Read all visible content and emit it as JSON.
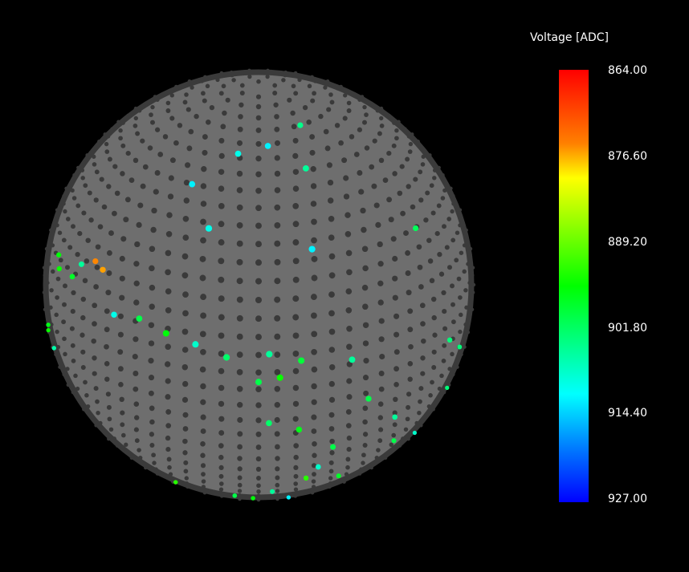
{
  "chart_data": {
    "type": "scatter",
    "title": "",
    "colorbar": {
      "label": "Voltage [ADC]",
      "ticks": [
        "864.00",
        "876.60",
        "889.20",
        "901.80",
        "914.40",
        "927.00"
      ],
      "range": [
        864.0,
        927.0
      ],
      "colormap": "rainbow (red = low, blue = high)"
    },
    "sphere": {
      "inactive_color": "#3a3a3a",
      "sphere_color": "#6e6e6e",
      "background": "#000000"
    },
    "active_channels_description_note": "",
    "hits": [
      {
        "theta": 1.2,
        "phi": -0.95,
        "v": 875
      },
      {
        "theta": 1.22,
        "phi": -0.88,
        "v": 876
      },
      {
        "theta": 1.25,
        "phi": -1.05,
        "v": 905
      },
      {
        "theta": 1.3,
        "phi": -1.3,
        "v": 896
      },
      {
        "theta": 1.35,
        "phi": -1.25,
        "v": 895
      },
      {
        "theta": 1.33,
        "phi": -1.1,
        "v": 898
      },
      {
        "theta": 1.4,
        "phi": -0.75,
        "v": 910
      },
      {
        "theta": 1.38,
        "phi": -0.6,
        "v": 900
      },
      {
        "theta": 1.42,
        "phi": -0.45,
        "v": 896
      },
      {
        "theta": 1.45,
        "phi": -0.3,
        "v": 908
      },
      {
        "theta": 1.5,
        "phi": -0.15,
        "v": 902
      },
      {
        "theta": 1.48,
        "phi": 0.05,
        "v": 905
      },
      {
        "theta": 1.52,
        "phi": 0.2,
        "v": 899
      },
      {
        "theta": 1.6,
        "phi": 0.1,
        "v": 895
      },
      {
        "theta": 1.62,
        "phi": 0.0,
        "v": 900
      },
      {
        "theta": 1.55,
        "phi": 0.45,
        "v": 905
      },
      {
        "theta": 1.7,
        "phi": -1.4,
        "v": 897
      },
      {
        "theta": 1.75,
        "phi": -1.45,
        "v": 895
      },
      {
        "theta": 1.8,
        "phi": -1.35,
        "v": 906
      },
      {
        "theta": 1.9,
        "phi": -1.48,
        "v": 900
      },
      {
        "theta": 2.0,
        "phi": -1.42,
        "v": 897
      },
      {
        "theta": 2.1,
        "phi": -1.38,
        "v": 905
      },
      {
        "theta": 2.2,
        "phi": -1.3,
        "v": 895
      },
      {
        "theta": 2.3,
        "phi": -1.2,
        "v": 893
      },
      {
        "theta": 2.4,
        "phi": -1.1,
        "v": 894
      },
      {
        "theta": 2.5,
        "phi": -0.95,
        "v": 900
      },
      {
        "theta": 2.6,
        "phi": -0.8,
        "v": 897
      },
      {
        "theta": 2.5,
        "phi": -0.7,
        "v": 893
      },
      {
        "theta": 2.55,
        "phi": -0.2,
        "v": 900
      },
      {
        "theta": 2.6,
        "phi": -0.05,
        "v": 896
      },
      {
        "theta": 2.45,
        "phi": 0.1,
        "v": 905
      },
      {
        "theta": 2.3,
        "phi": 0.3,
        "v": 893
      },
      {
        "theta": 2.2,
        "phi": 0.35,
        "v": 908
      },
      {
        "theta": 2.05,
        "phi": 0.4,
        "v": 900
      },
      {
        "theta": 1.9,
        "phi": 0.2,
        "v": 897
      },
      {
        "theta": 1.85,
        "phi": 0.05,
        "v": 902
      },
      {
        "theta": 1.78,
        "phi": 0.55,
        "v": 900
      },
      {
        "theta": 1.95,
        "phi": 0.75,
        "v": 905
      },
      {
        "theta": 2.15,
        "phi": 0.85,
        "v": 900
      },
      {
        "theta": 2.35,
        "phi": 0.55,
        "v": 898
      },
      {
        "theta": 1.65,
        "phi": 1.1,
        "v": 903
      },
      {
        "theta": 1.75,
        "phi": 1.25,
        "v": 903
      },
      {
        "theta": 2.0,
        "phi": 1.3,
        "v": 903
      },
      {
        "theta": 2.25,
        "phi": 1.2,
        "v": 908
      },
      {
        "theta": 0.5,
        "phi": -0.2,
        "v": 910
      },
      {
        "theta": 0.6,
        "phi": 0.4,
        "v": 905
      },
      {
        "theta": 0.45,
        "phi": 0.1,
        "v": 912
      },
      {
        "theta": 0.7,
        "phi": -0.5,
        "v": 912
      },
      {
        "theta": 0.35,
        "phi": 0.6,
        "v": 904
      },
      {
        "theta": 0.9,
        "phi": -0.3,
        "v": 910
      },
      {
        "theta": 1.0,
        "phi": 0.3,
        "v": 912
      },
      {
        "theta": 1.05,
        "phi": 1.0,
        "v": 901
      },
      {
        "theta": 2.7,
        "phi": -0.45,
        "v": 912
      },
      {
        "theta": 2.75,
        "phi": 0.15,
        "v": 910
      },
      {
        "theta": 2.65,
        "phi": 0.3,
        "v": 912
      }
    ]
  }
}
